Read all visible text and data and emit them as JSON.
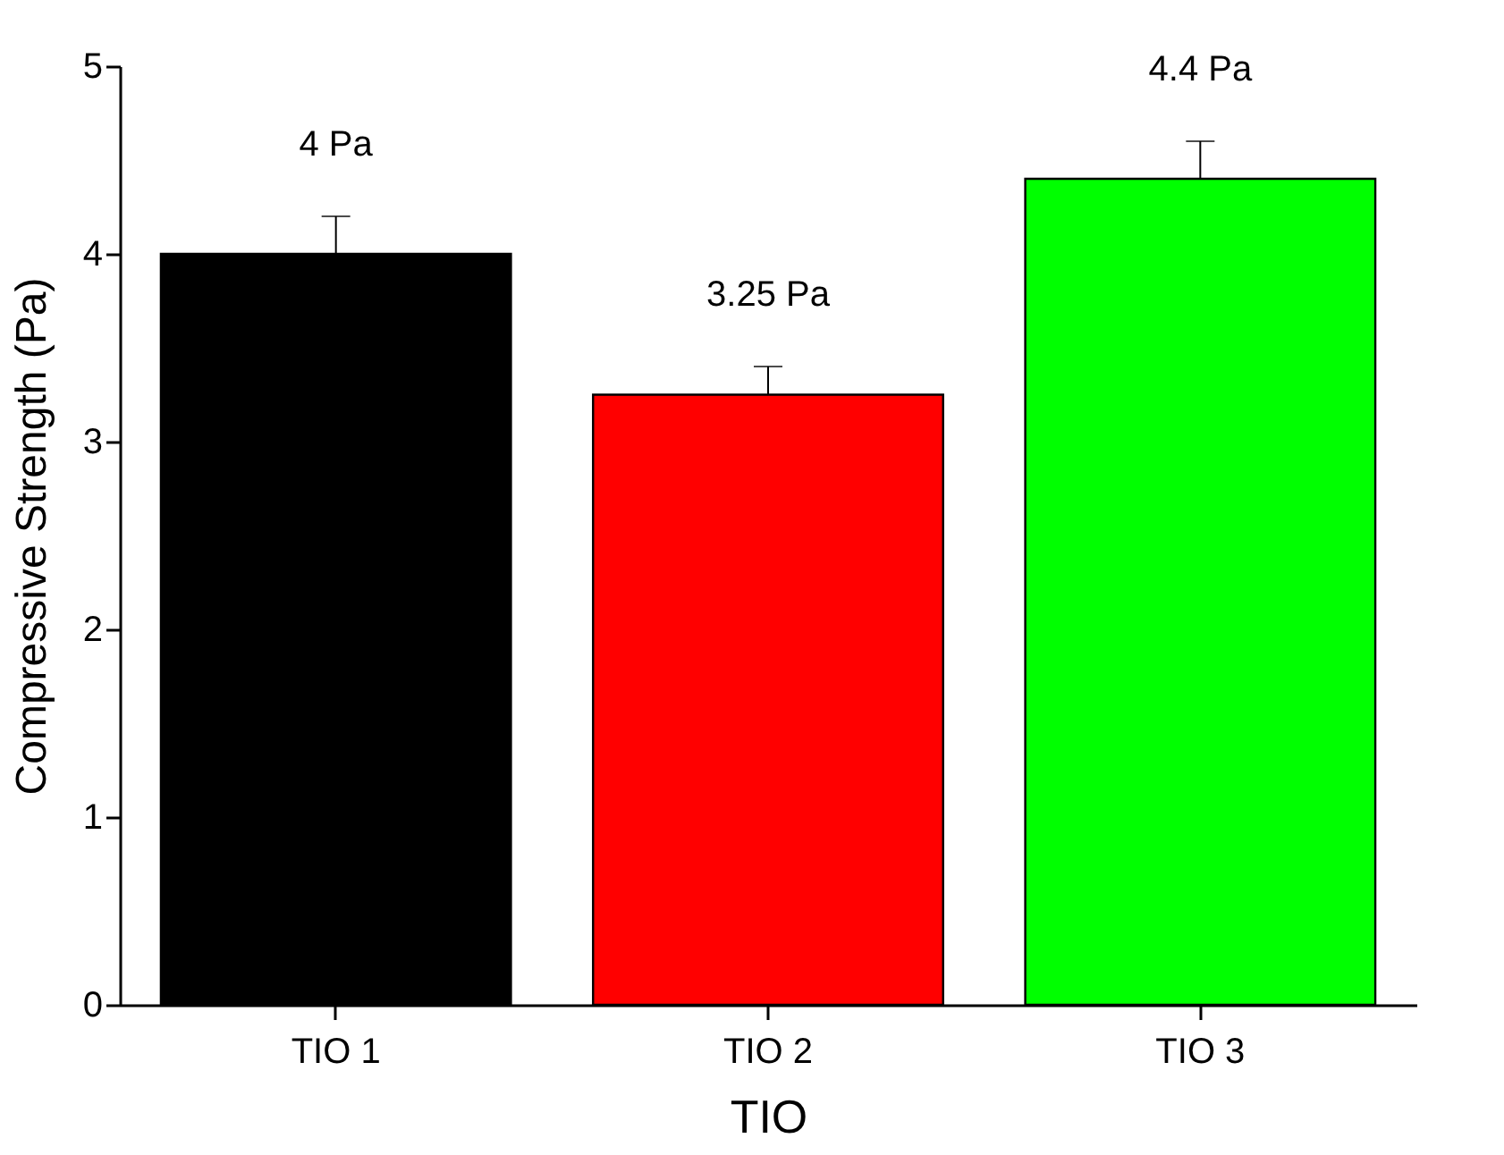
{
  "chart_data": {
    "type": "bar",
    "xlabel": "TIO",
    "ylabel": "Compressive Strength (Pa)",
    "categories": [
      "TIO 1",
      "TIO 2",
      "TIO 3"
    ],
    "values": [
      4,
      3.25,
      4.4
    ],
    "colors": [
      "#000000",
      "#ff0000",
      "#00ff00"
    ],
    "errors": [
      [
        4,
        4.2
      ],
      [
        3.25,
        3.4
      ],
      [
        4.4,
        4.6
      ]
    ],
    "value_labels": [
      "4 Pa",
      "3.25 Pa",
      "4.4 Pa"
    ],
    "ylim": [
      0,
      5
    ],
    "yticks": [
      0,
      1,
      2,
      3,
      4,
      5
    ],
    "grid": false,
    "legend": false
  }
}
